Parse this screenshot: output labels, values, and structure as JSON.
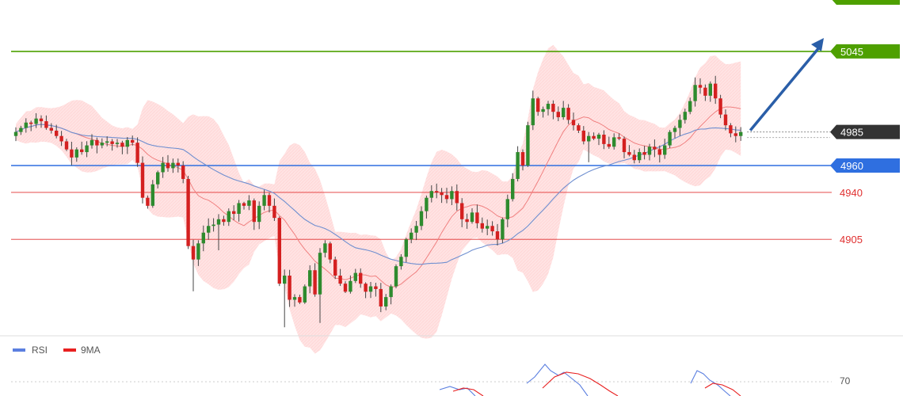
{
  "chart_data": [
    {
      "type": "candlestick",
      "price_levels": [
        {
          "name": "level-5045",
          "value": 5045,
          "label": "5045",
          "color": "#4ea000",
          "label_style": "filled-tag"
        },
        {
          "name": "level-4985",
          "value": 4985,
          "label": "4985",
          "color": "#333333",
          "label_style": "filled-tag",
          "line_style": "dotted"
        },
        {
          "name": "level-4960",
          "value": 4960,
          "label": "4960",
          "color": "#2f6fe0",
          "label_style": "filled-tag"
        },
        {
          "name": "level-4940",
          "value": 4940,
          "label": "4940",
          "color": "#e03030",
          "label_style": "text"
        },
        {
          "name": "level-4905",
          "value": 4905,
          "label": "4905",
          "color": "#e03030",
          "label_style": "text"
        }
      ],
      "projection_arrow": {
        "from": 4985,
        "to": 5055,
        "color": "#2a5ea8"
      },
      "colors": {
        "up": "#2e8b2e",
        "down": "#d42020",
        "band": "#ffd6d6",
        "ma_fast": "#f08080",
        "ma_slow": "#6f8fd0"
      },
      "approx_closes": [
        4985,
        4988,
        4992,
        4991,
        4995,
        4993,
        4988,
        4986,
        4982,
        4978,
        4972,
        4966,
        4972,
        4970,
        4975,
        4979,
        4975,
        4977,
        4978,
        4976,
        4977,
        4974,
        4979,
        4977,
        4962,
        4936,
        4930,
        4946,
        4955,
        4962,
        4958,
        4962,
        4960,
        4950,
        4900,
        4890,
        4902,
        4910,
        4915,
        4916,
        4920,
        4918,
        4926,
        4924,
        4932,
        4930,
        4934,
        4918,
        4930,
        4938,
        4930,
        4921,
        4872,
        4878,
        4860,
        4862,
        4858,
        4870,
        4882,
        4864,
        4895,
        4902,
        4890,
        4878,
        4872,
        4866,
        4874,
        4880,
        4872,
        4866,
        4870,
        4868,
        4855,
        4862,
        4870,
        4885,
        4892,
        4905,
        4910,
        4915,
        4926,
        4936,
        4941,
        4940,
        4938,
        4935,
        4941,
        4932,
        4920,
        4918,
        4925,
        4917,
        4913,
        4915,
        4911,
        4905,
        4920,
        4935,
        4950,
        4970,
        4960,
        4990,
        5010,
        5000,
        5002,
        5006,
        5000,
        4996,
        5003,
        4994,
        4990,
        4986,
        4978,
        4982,
        4980,
        4983,
        4976,
        4974,
        4981,
        4980,
        4970,
        4968,
        4964,
        4970,
        4968,
        4974,
        4972,
        4968,
        4975,
        4985,
        4988,
        4994,
        5000,
        5008,
        5020,
        5018,
        5012,
        5021,
        5010,
        4998,
        4990,
        4984,
        4982,
        4985
      ]
    },
    {
      "type": "line",
      "legend": [
        {
          "label": "RSI",
          "color": "#5b7fe0"
        },
        {
          "label": "9MA",
          "color": "#e82020"
        }
      ],
      "reference_level": "70"
    }
  ]
}
